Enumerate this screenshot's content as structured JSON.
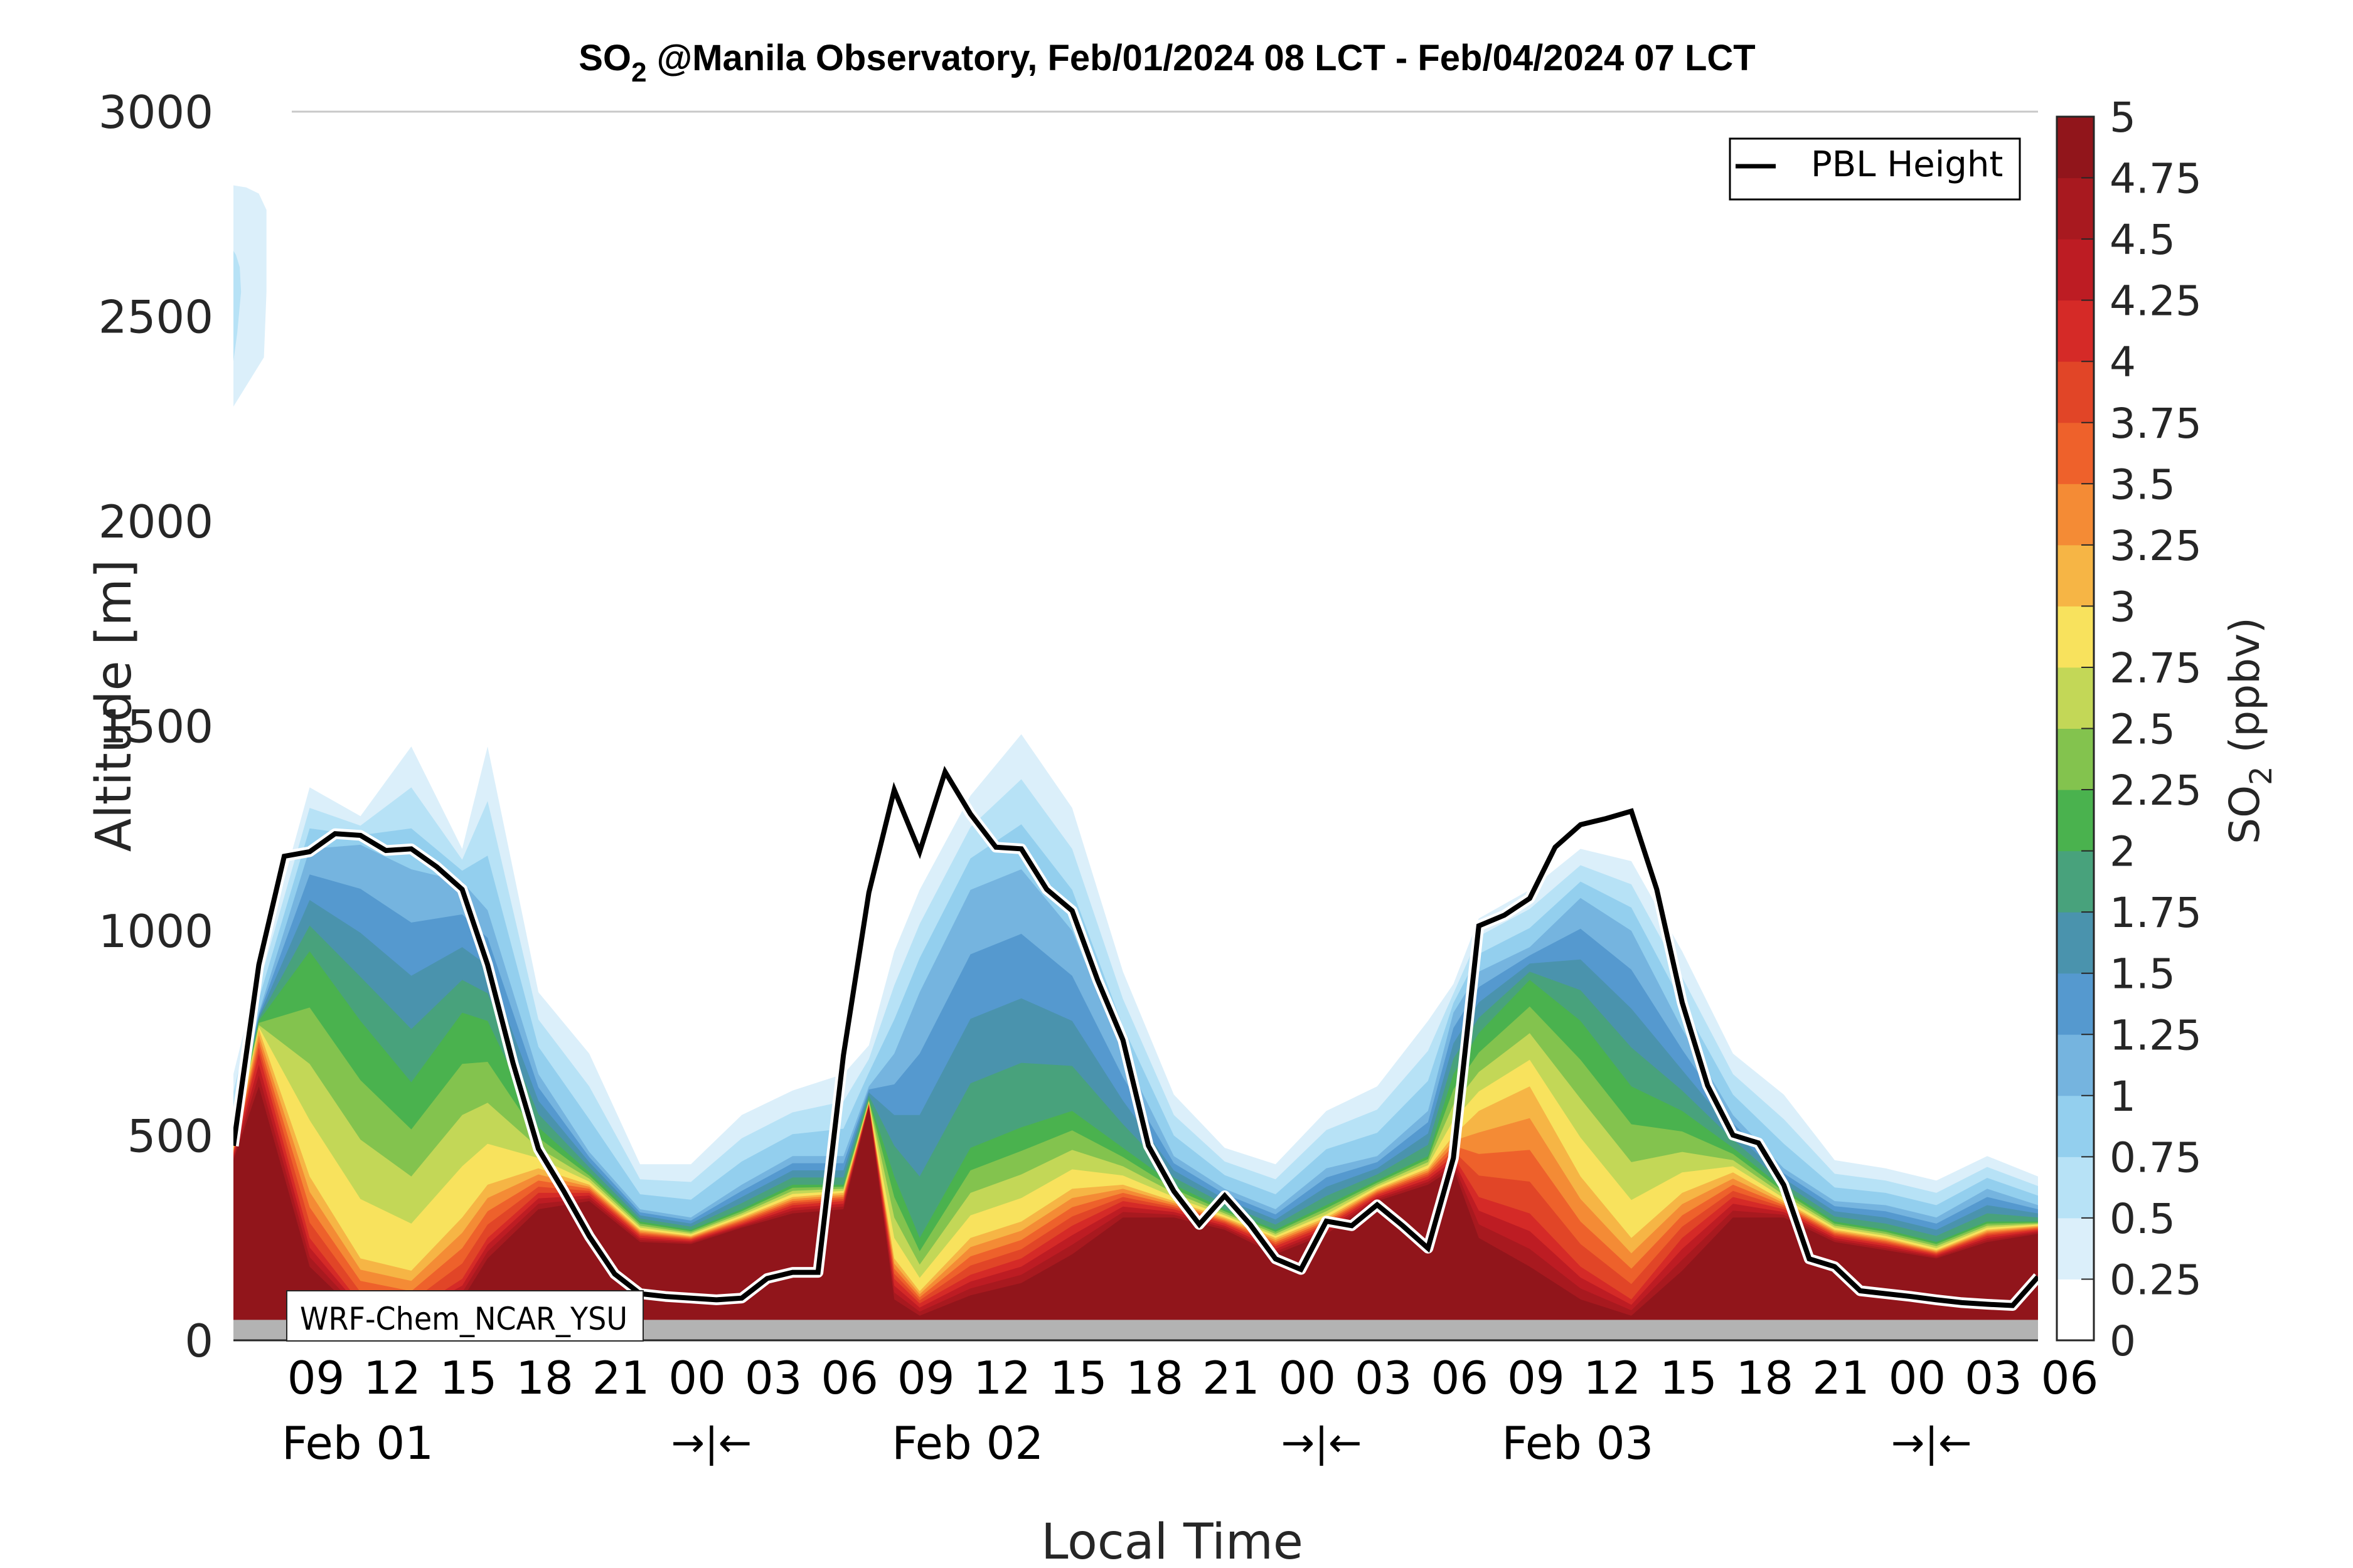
{
  "chart_data": {
    "type": "heatmap",
    "subtype": "filled-contour time-height cross-section with line overlay",
    "title": "SO2 @Manila Observatory, Feb/01/2024 08 LCT - Feb/04/2024 07 LCT",
    "title_parts": {
      "species": "SO",
      "subscript": "2",
      "rest": " @Manila Observatory, Feb/01/2024 08 LCT - Feb/04/2024 07 LCT"
    },
    "xlabel": "Local Time",
    "ylabel": "Altitude [m]",
    "ylim": [
      0,
      3000
    ],
    "yticks": [
      0,
      500,
      1000,
      1500,
      2000,
      2500,
      3000
    ],
    "x_range_hours": [
      0,
      71
    ],
    "x_origin": "Feb 01 08 LCT",
    "xtick_labels": [
      {
        "hour": 1,
        "label": "09"
      },
      {
        "hour": 4,
        "label": "12"
      },
      {
        "hour": 7,
        "label": "15"
      },
      {
        "hour": 10,
        "label": "18"
      },
      {
        "hour": 13,
        "label": "21"
      },
      {
        "hour": 16,
        "label": "00"
      },
      {
        "hour": 19,
        "label": "03"
      },
      {
        "hour": 22,
        "label": "06"
      },
      {
        "hour": 25,
        "label": "09"
      },
      {
        "hour": 28,
        "label": "12"
      },
      {
        "hour": 31,
        "label": "15"
      },
      {
        "hour": 34,
        "label": "18"
      },
      {
        "hour": 37,
        "label": "21"
      },
      {
        "hour": 40,
        "label": "00"
      },
      {
        "hour": 43,
        "label": "03"
      },
      {
        "hour": 46,
        "label": "06"
      },
      {
        "hour": 49,
        "label": "09"
      },
      {
        "hour": 52,
        "label": "12"
      },
      {
        "hour": 55,
        "label": "15"
      },
      {
        "hour": 58,
        "label": "18"
      },
      {
        "hour": 61,
        "label": "21"
      },
      {
        "hour": 64,
        "label": "00"
      },
      {
        "hour": 67,
        "label": "03"
      },
      {
        "hour": 70,
        "label": "06"
      }
    ],
    "day_labels": [
      {
        "hour": 4,
        "label": "Feb 01"
      },
      {
        "hour": 28,
        "label": "Feb 02"
      },
      {
        "hour": 52,
        "label": "Feb 03"
      }
    ],
    "midnight_markers": [
      {
        "hour": 17.5,
        "label": "→|←"
      },
      {
        "hour": 41.5,
        "label": "→|←"
      },
      {
        "hour": 65.5,
        "label": "→|←"
      }
    ],
    "colorbar": {
      "label": "SO2 (ppbv)",
      "label_parts": {
        "species": "SO",
        "subscript": "2",
        "rest": " (ppbv)"
      },
      "levels": [
        0,
        0.25,
        0.5,
        0.75,
        1,
        1.25,
        1.5,
        1.75,
        2,
        2.25,
        2.5,
        2.75,
        3,
        3.25,
        3.5,
        3.75,
        4,
        4.25,
        4.5,
        4.75,
        5
      ],
      "tick_labels": [
        "0",
        "0.25",
        "0.5",
        "0.75",
        "1",
        "1.25",
        "1.5",
        "1.75",
        "2",
        "2.25",
        "2.5",
        "2.75",
        "3",
        "3.25",
        "3.5",
        "3.75",
        "4",
        "4.25",
        "4.5",
        "4.75",
        "5"
      ],
      "colors": [
        "#ffffff",
        "#dbeffa",
        "#b7e2f6",
        "#93cfee",
        "#75b4df",
        "#5599cf",
        "#4a93ad",
        "#48a27c",
        "#4ab24e",
        "#83c34e",
        "#c3d757",
        "#f8e25d",
        "#f6b545",
        "#f48b35",
        "#ee612b",
        "#e14527",
        "#d52a27",
        "#bd1c23",
        "#a8191f",
        "#91151b"
      ]
    },
    "terrain_height_m": 50,
    "terrain_color": "#b3b3b3",
    "isoheight_key_levels": [
      0.25,
      1.0,
      2.0,
      3.0,
      4.0,
      4.75
    ],
    "isoheights_m": [
      {
        "hour": 0,
        "h": [
          650,
          520,
          490,
          470,
          455,
          440
        ]
      },
      {
        "hour": 1,
        "h": [
          900,
          800,
          780,
          760,
          700,
          620
        ]
      },
      {
        "hour": 3,
        "h": [
          1350,
          1200,
          950,
          400,
          250,
          180
        ]
      },
      {
        "hour": 5,
        "h": [
          1280,
          1210,
          780,
          200,
          90,
          60
        ]
      },
      {
        "hour": 7,
        "h": [
          1450,
          1150,
          630,
          170,
          70,
          55
        ]
      },
      {
        "hour": 9,
        "h": [
          1200,
          1120,
          800,
          300,
          150,
          100
        ]
      },
      {
        "hour": 10,
        "h": [
          1450,
          1050,
          780,
          380,
          250,
          200
        ]
      },
      {
        "hour": 12,
        "h": [
          850,
          650,
          520,
          420,
          360,
          320
        ]
      },
      {
        "hour": 14,
        "h": [
          700,
          460,
          410,
          380,
          360,
          340
        ]
      },
      {
        "hour": 16,
        "h": [
          430,
          320,
          290,
          270,
          255,
          240
        ]
      },
      {
        "hour": 18,
        "h": [
          430,
          300,
          270,
          255,
          245,
          235
        ]
      },
      {
        "hour": 20,
        "h": [
          550,
          380,
          320,
          300,
          285,
          275
        ]
      },
      {
        "hour": 22,
        "h": [
          610,
          450,
          380,
          350,
          330,
          310
        ]
      },
      {
        "hour": 24,
        "h": [
          650,
          450,
          380,
          360,
          340,
          320
        ]
      },
      {
        "hour": 25,
        "h": [
          720,
          620,
          590,
          580,
          575,
          570
        ]
      },
      {
        "hour": 26,
        "h": [
          950,
          700,
          400,
          200,
          150,
          100
        ]
      },
      {
        "hour": 27,
        "h": [
          1100,
          850,
          250,
          120,
          90,
          60
        ]
      },
      {
        "hour": 29,
        "h": [
          1330,
          1100,
          470,
          250,
          160,
          110
        ]
      },
      {
        "hour": 31,
        "h": [
          1480,
          1150,
          520,
          290,
          200,
          140
        ]
      },
      {
        "hour": 33,
        "h": [
          1300,
          1000,
          560,
          370,
          280,
          210
        ]
      },
      {
        "hour": 35,
        "h": [
          900,
          700,
          470,
          380,
          340,
          300
        ]
      },
      {
        "hour": 37,
        "h": [
          600,
          450,
          380,
          340,
          320,
          300
        ]
      },
      {
        "hour": 39,
        "h": [
          470,
          370,
          320,
          300,
          285,
          270
        ]
      },
      {
        "hour": 41,
        "h": [
          430,
          320,
          270,
          250,
          230,
          210
        ]
      },
      {
        "hour": 43,
        "h": [
          560,
          420,
          330,
          300,
          280,
          260
        ]
      },
      {
        "hour": 45,
        "h": [
          620,
          450,
          390,
          370,
          355,
          340
        ]
      },
      {
        "hour": 47,
        "h": [
          780,
          560,
          450,
          420,
          400,
          380
        ]
      },
      {
        "hour": 48,
        "h": [
          870,
          800,
          650,
          500,
          450,
          420
        ]
      },
      {
        "hour": 49,
        "h": [
          1030,
          900,
          750,
          560,
          350,
          250
        ]
      },
      {
        "hour": 51,
        "h": [
          1100,
          960,
          880,
          620,
          310,
          180
        ]
      },
      {
        "hour": 53,
        "h": [
          1200,
          1080,
          780,
          400,
          180,
          100
        ]
      },
      {
        "hour": 55,
        "h": [
          1170,
          1000,
          620,
          250,
          100,
          60
        ]
      },
      {
        "hour": 57,
        "h": [
          950,
          760,
          560,
          360,
          250,
          170
        ]
      },
      {
        "hour": 59,
        "h": [
          700,
          550,
          470,
          410,
          350,
          300
        ]
      },
      {
        "hour": 61,
        "h": [
          600,
          420,
          370,
          340,
          320,
          300
        ]
      },
      {
        "hour": 63,
        "h": [
          440,
          340,
          290,
          270,
          255,
          240
        ]
      },
      {
        "hour": 65,
        "h": [
          420,
          330,
          270,
          250,
          235,
          220
        ]
      },
      {
        "hour": 67,
        "h": [
          390,
          300,
          240,
          220,
          210,
          200
        ]
      },
      {
        "hour": 69,
        "h": [
          450,
          370,
          290,
          270,
          255,
          240
        ]
      },
      {
        "hour": 71,
        "h": [
          400,
          330,
          290,
          280,
          270,
          260
        ]
      }
    ],
    "upper_patch": {
      "description": "weak SO2 aloft at start of period",
      "level_0_25": [
        [
          0,
          2280
        ],
        [
          0.5,
          2330
        ],
        [
          1.2,
          2400
        ],
        [
          1.3,
          2560
        ],
        [
          1.3,
          2760
        ],
        [
          1.0,
          2800
        ],
        [
          0.5,
          2815
        ],
        [
          0,
          2820
        ]
      ],
      "level_0_5": [
        [
          0,
          2390
        ],
        [
          0.15,
          2460
        ],
        [
          0.3,
          2560
        ],
        [
          0.25,
          2620
        ],
        [
          0.1,
          2650
        ],
        [
          0,
          2660
        ]
      ]
    },
    "series": [
      {
        "name": "PBL Height",
        "type": "line",
        "color": "#000000",
        "hours": [
          0,
          1,
          2,
          3,
          4,
          5,
          6,
          7,
          8,
          9,
          10,
          11,
          12,
          13,
          14,
          15,
          16,
          17,
          18,
          19,
          20,
          21,
          22,
          23,
          24,
          25,
          26,
          27,
          28,
          29,
          30,
          31,
          32,
          33,
          34,
          35,
          36,
          37,
          38,
          39,
          40,
          41,
          42,
          43,
          44,
          45,
          46,
          47,
          48,
          49,
          50,
          51,
          52,
          53,
          54,
          55,
          56,
          57,
          58,
          59,
          60,
          61,
          62,
          63,
          64,
          65,
          66,
          67,
          68,
          69,
          70,
          71
        ],
        "values_m": [
          475,
          917,
          1182,
          1193,
          1237,
          1233,
          1196,
          1200,
          1156,
          1101,
          917,
          677,
          467,
          364,
          254,
          162,
          114,
          107,
          103,
          99,
          103,
          151,
          166,
          166,
          696,
          1093,
          1344,
          1193,
          1388,
          1285,
          1204,
          1200,
          1101,
          1049,
          880,
          733,
          475,
          364,
          283,
          353,
          283,
          199,
          173,
          291,
          280,
          331,
          280,
          225,
          445,
          1012,
          1038,
          1079,
          1204,
          1259,
          1274,
          1292,
          1101,
          825,
          622,
          501,
          482,
          379,
          199,
          180,
          121,
          114,
          107,
          99,
          92,
          88,
          85,
          155
        ]
      }
    ],
    "legend": {
      "entries": [
        "PBL Height"
      ],
      "placement": "top-right"
    },
    "annotation": "WRF-Chem_NCAR_YSU",
    "grid": false
  }
}
